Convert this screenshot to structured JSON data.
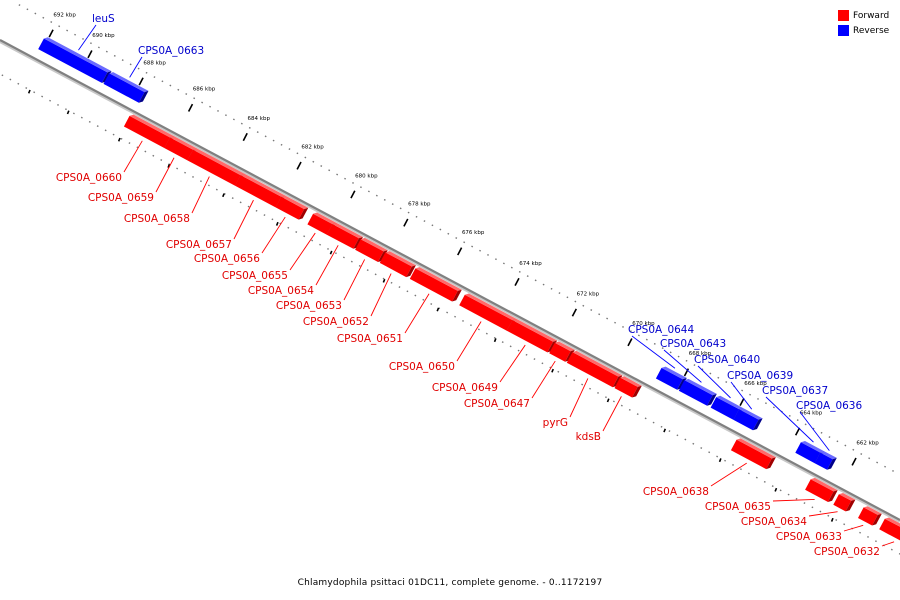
{
  "caption": "Chlamydophila psittaci 01DC11, complete genome. - 0..1172197",
  "legend": [
    {
      "label": "Forward",
      "color": "#ff0000"
    },
    {
      "label": "Reverse",
      "color": "#0000ff"
    }
  ],
  "colors": {
    "forward": "#ff0000",
    "reverse": "#0000ff",
    "forward_text": "#e00000",
    "reverse_text": "#0000cc",
    "backbone": "#808080"
  },
  "ruler": {
    "ticks": [
      "692 kbp",
      "690 kbp",
      "688 kbp",
      "686 kbp",
      "684 kbp",
      "682 kbp",
      "680 kbp",
      "678 kbp",
      "676 kbp",
      "674 kbp",
      "672 kbp",
      "670 kbp",
      "668 kbp",
      "666 kbp",
      "664 kbp",
      "662 kbp"
    ]
  },
  "genes": [
    {
      "label": "leuS",
      "strand": "reverse"
    },
    {
      "label": "CPS0A_0663",
      "strand": "reverse"
    },
    {
      "label": "CPS0A_0660",
      "strand": "forward"
    },
    {
      "label": "CPS0A_0659",
      "strand": "forward"
    },
    {
      "label": "CPS0A_0658",
      "strand": "forward"
    },
    {
      "label": "CPS0A_0657",
      "strand": "forward"
    },
    {
      "label": "CPS0A_0656",
      "strand": "forward"
    },
    {
      "label": "CPS0A_0655",
      "strand": "forward"
    },
    {
      "label": "CPS0A_0654",
      "strand": "forward"
    },
    {
      "label": "CPS0A_0653",
      "strand": "forward"
    },
    {
      "label": "CPS0A_0652",
      "strand": "forward"
    },
    {
      "label": "CPS0A_0651",
      "strand": "forward"
    },
    {
      "label": "CPS0A_0650",
      "strand": "forward"
    },
    {
      "label": "CPS0A_0649",
      "strand": "forward"
    },
    {
      "label": "CPS0A_0647",
      "strand": "forward"
    },
    {
      "label": "pyrG",
      "strand": "forward"
    },
    {
      "label": "kdsB",
      "strand": "forward"
    },
    {
      "label": "CPS0A_0644",
      "strand": "reverse"
    },
    {
      "label": "CPS0A_0643",
      "strand": "reverse"
    },
    {
      "label": "CPS0A_0640",
      "strand": "reverse"
    },
    {
      "label": "CPS0A_0639",
      "strand": "reverse"
    },
    {
      "label": "CPS0A_0637",
      "strand": "reverse"
    },
    {
      "label": "CPS0A_0636",
      "strand": "reverse"
    },
    {
      "label": "CPS0A_0638",
      "strand": "forward"
    },
    {
      "label": "CPS0A_0635",
      "strand": "forward"
    },
    {
      "label": "CPS0A_0634",
      "strand": "forward"
    },
    {
      "label": "CPS0A_0633",
      "strand": "forward"
    },
    {
      "label": "CPS0A_0632",
      "strand": "forward"
    }
  ]
}
